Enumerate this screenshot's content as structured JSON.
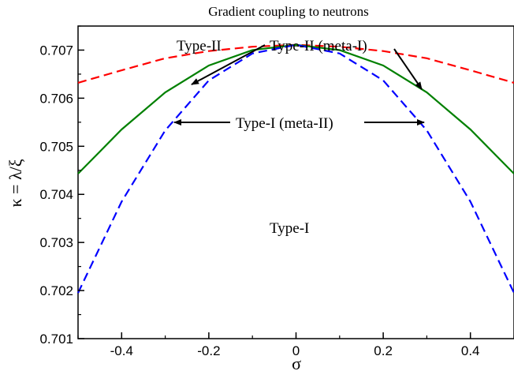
{
  "chart_data": {
    "type": "line",
    "title": "Gradient coupling to neutrons",
    "xlabel": "σ",
    "ylabel": "κ = λ/ξ",
    "xlim": [
      -0.5,
      0.5
    ],
    "ylim": [
      0.701,
      0.7075
    ],
    "grid": false,
    "x_ticks": [
      -0.4,
      -0.2,
      0,
      0.2,
      0.4
    ],
    "x_tick_labels": [
      "-0.4",
      "-0.2",
      "0",
      "0.2",
      "0.4"
    ],
    "y_ticks": [
      0.701,
      0.702,
      0.703,
      0.704,
      0.705,
      0.706,
      0.707
    ],
    "y_tick_labels": [
      "0.701",
      "0.702",
      "0.703",
      "0.704",
      "0.705",
      "0.706",
      "0.707"
    ],
    "x": [
      -0.5,
      -0.4,
      -0.3,
      -0.2,
      -0.1,
      0,
      0.1,
      0.2,
      0.3,
      0.4,
      0.5
    ],
    "series": [
      {
        "color": "#ff0000",
        "style": "dashed",
        "values": [
          0.70632,
          0.70658,
          0.70683,
          0.70698,
          0.70707,
          0.70711,
          0.70707,
          0.70698,
          0.70683,
          0.70658,
          0.70632
        ]
      },
      {
        "color": "#008000",
        "style": "solid",
        "values": [
          0.70443,
          0.70535,
          0.70612,
          0.70668,
          0.707,
          0.70711,
          0.707,
          0.70668,
          0.70612,
          0.70535,
          0.70443
        ]
      },
      {
        "color": "#0000ff",
        "style": "dashed",
        "values": [
          0.70195,
          0.70385,
          0.70533,
          0.70637,
          0.70693,
          0.70711,
          0.70693,
          0.70637,
          0.70533,
          0.70385,
          0.70195
        ]
      }
    ],
    "annotations": [
      {
        "id": "type2",
        "text": "Type-II"
      },
      {
        "id": "type2meta",
        "text": "Type-II (meta-I)"
      },
      {
        "id": "type1meta",
        "text": "Type-I (meta-II)"
      },
      {
        "id": "type1",
        "text": "Type-I"
      }
    ]
  }
}
